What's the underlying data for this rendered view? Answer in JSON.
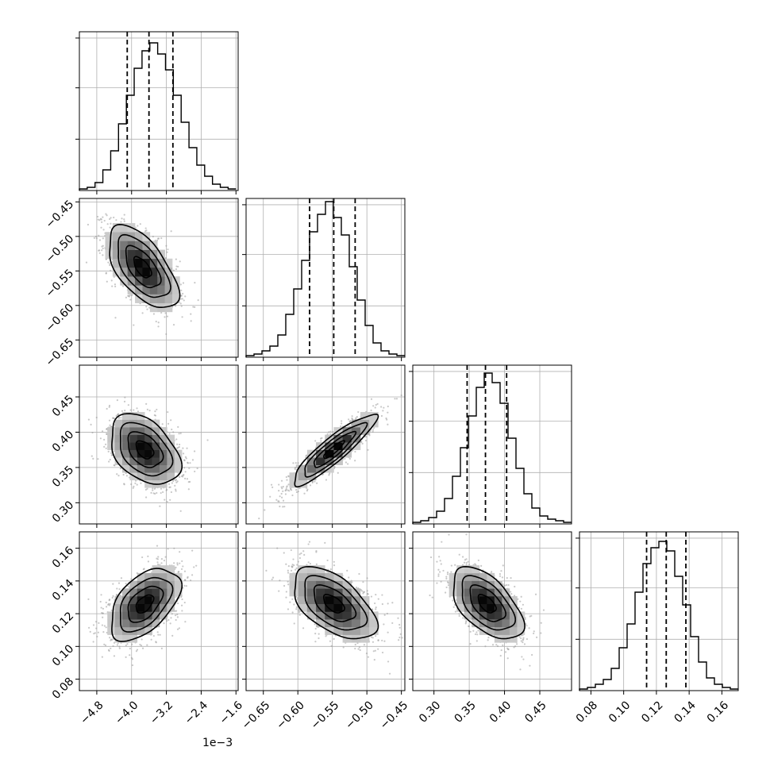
{
  "chart_data": {
    "type": "corner-plot",
    "parameters": [
      {
        "id": "p0",
        "unit_scale": 0.001,
        "offset_label": "1e−3",
        "axis": {
          "min": -5.2,
          "max": -1.55
        },
        "ticks": [
          -4.8,
          -4.0,
          -3.2,
          -2.4,
          -1.6
        ],
        "tick_labels": [
          "−4.8",
          "−4.0",
          "−3.2",
          "−2.4",
          "−1.6"
        ],
        "hist": {
          "bin_start": -5.2,
          "bin_width": 0.18,
          "counts": [
            0.01,
            0.02,
            0.05,
            0.13,
            0.25,
            0.42,
            0.6,
            0.77,
            0.88,
            0.93,
            0.86,
            0.76,
            0.6,
            0.43,
            0.27,
            0.16,
            0.09,
            0.04,
            0.02,
            0.01
          ]
        },
        "quantiles": [
          -4.1,
          -3.6,
          -3.05
        ]
      },
      {
        "id": "p1",
        "axis": {
          "min": -0.675,
          "max": -0.445
        },
        "ticks": [
          -0.65,
          -0.6,
          -0.55,
          -0.5,
          -0.45
        ],
        "tick_labels": [
          "−0.65",
          "−0.60",
          "−0.55",
          "−0.50",
          "−0.45"
        ],
        "hist": {
          "bin_start": -0.675,
          "bin_width": 0.0115,
          "counts": [
            0.01,
            0.02,
            0.04,
            0.07,
            0.14,
            0.27,
            0.43,
            0.61,
            0.79,
            0.9,
            0.98,
            0.88,
            0.77,
            0.57,
            0.36,
            0.2,
            0.09,
            0.04,
            0.02,
            0.01
          ]
        },
        "quantiles": [
          -0.583,
          -0.548,
          -0.517
        ]
      },
      {
        "id": "p2",
        "axis": {
          "min": 0.27,
          "max": 0.495
        },
        "ticks": [
          0.3,
          0.35,
          0.4,
          0.45
        ],
        "tick_labels": [
          "0.30",
          "0.35",
          "0.40",
          "0.45"
        ],
        "hist": {
          "bin_start": 0.27,
          "bin_width": 0.01125,
          "counts": [
            0.01,
            0.02,
            0.04,
            0.08,
            0.16,
            0.3,
            0.48,
            0.68,
            0.86,
            0.95,
            0.89,
            0.76,
            0.54,
            0.35,
            0.19,
            0.1,
            0.05,
            0.03,
            0.02,
            0.01
          ]
        },
        "quantiles": [
          0.347,
          0.373,
          0.403
        ]
      },
      {
        "id": "p3",
        "axis": {
          "min": 0.073,
          "max": 0.17
        },
        "ticks": [
          0.08,
          0.1,
          0.12,
          0.14,
          0.16
        ],
        "tick_labels": [
          "0.08",
          "0.10",
          "0.12",
          "0.14",
          "0.16"
        ],
        "hist": {
          "bin_start": 0.073,
          "bin_width": 0.00485,
          "counts": [
            0.01,
            0.02,
            0.04,
            0.07,
            0.14,
            0.27,
            0.42,
            0.62,
            0.8,
            0.9,
            0.94,
            0.88,
            0.72,
            0.54,
            0.34,
            0.18,
            0.08,
            0.04,
            0.02,
            0.01
          ]
        },
        "quantiles": [
          0.114,
          0.126,
          0.138
        ]
      }
    ],
    "pairs": [
      {
        "x": "p0",
        "y": "p1",
        "mean": [
          -3.75,
          -0.545
        ],
        "sd": [
          0.4,
          0.03
        ],
        "corr": -0.6
      },
      {
        "x": "p0",
        "y": "p2",
        "mean": [
          -3.7,
          0.375
        ],
        "sd": [
          0.4,
          0.025
        ],
        "corr": -0.4
      },
      {
        "x": "p1",
        "y": "p2",
        "mean": [
          -0.548,
          0.375
        ],
        "sd": [
          0.03,
          0.025
        ],
        "corr": 0.9
      },
      {
        "x": "p0",
        "y": "p3",
        "mean": [
          -3.7,
          0.126
        ],
        "sd": [
          0.4,
          0.011
        ],
        "corr": 0.5
      },
      {
        "x": "p1",
        "y": "p3",
        "mean": [
          -0.548,
          0.126
        ],
        "sd": [
          0.03,
          0.011
        ],
        "corr": -0.55
      },
      {
        "x": "p2",
        "y": "p3",
        "mean": [
          0.375,
          0.126
        ],
        "sd": [
          0.025,
          0.011
        ],
        "corr": -0.55
      }
    ],
    "contour_levels_sigma": [
      0.5,
      1.0,
      1.5,
      2.0
    ],
    "grid": true,
    "quantile_style": "dashed"
  }
}
